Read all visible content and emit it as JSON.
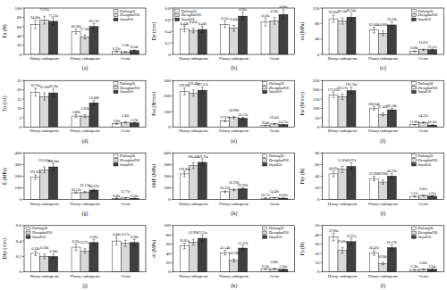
{
  "chart_data": [
    {
      "type": "bar",
      "title": "(a)",
      "y_label": "Ep (N)",
      "categories": [
        "Horny endosperm",
        "Floury endosperm",
        "Germ"
      ],
      "ylim": [
        0,
        100
      ],
      "yticks": [
        0,
        20,
        40,
        60,
        80,
        100
      ],
      "legend": "upper right",
      "data_labels": true,
      "series": [
        {
          "name": "Dailong30",
          "color": "#ffffff",
          "values": [
            64.68,
            49.36,
            6.35
          ],
          "errors": [
            9.2,
            5.1,
            1.1
          ],
          "value_labels": [
            "64.68a",
            "49.36b",
            "6.35c"
          ]
        },
        {
          "name": "Zhengdan958",
          "color": "#d9d9d9",
          "values": [
            73.95,
            37.58,
            5.58
          ],
          "errors": [
            8.4,
            4.3,
            0.9
          ],
          "value_labels": [
            "73.95a",
            "37.58c",
            "5.58c"
          ]
        },
        {
          "name": "Jinyu818",
          "color": "#404040",
          "values": [
            71.31,
            60.11,
            8.34
          ],
          "errors": [
            7.5,
            6.2,
            1.3
          ],
          "value_labels": [
            "71.31a",
            "60.11b",
            "8.34c"
          ]
        }
      ]
    },
    {
      "type": "bar",
      "title": "(b)",
      "y_label": "Dp (mm)",
      "categories": [
        "Horny endosperm",
        "Floury endosperm",
        "Germ"
      ],
      "ylim": [
        0,
        0.8
      ],
      "yticks": [
        0,
        0.2,
        0.4,
        0.6,
        0.8
      ],
      "legend": "upper left",
      "data_labels": true,
      "series": [
        {
          "name": "Dailong30",
          "color": "#ffffff",
          "values": [
            0.44,
            0.52,
            0.56
          ],
          "errors": [
            0.05,
            0.06,
            0.07
          ],
          "value_labels": [
            "0.44b",
            "0.52a",
            "0.56a"
          ]
        },
        {
          "name": "Zhengdan958",
          "color": "#d9d9d9",
          "values": [
            0.41,
            0.45,
            0.58
          ],
          "errors": [
            0.04,
            0.05,
            0.06
          ],
          "value_labels": [
            "0.41b",
            "0.45b",
            "0.58a"
          ]
        },
        {
          "name": "Jinyu818",
          "color": "#404040",
          "values": [
            0.43,
            0.66,
            0.69
          ],
          "errors": [
            0.05,
            0.07,
            0.08
          ],
          "value_labels": [
            "0.43b",
            "0.66a",
            "0.69a"
          ]
        }
      ]
    },
    {
      "type": "bar",
      "title": "(c)",
      "y_label": "σs (MPa)",
      "categories": [
        "Horny endosperm",
        "Floury endosperm",
        "Germ"
      ],
      "ylim": [
        0,
        120
      ],
      "yticks": [
        0,
        40,
        80,
        120
      ],
      "legend": "upper right",
      "data_labels": true,
      "series": [
        {
          "name": "Dailong30",
          "color": "#ffffff",
          "values": [
            92.05,
            62.84,
            8.08
          ],
          "errors": [
            9.5,
            7.2,
            1.2
          ],
          "value_labels": [
            "92.05a",
            "62.84b",
            "8.08c"
          ]
        },
        {
          "name": "Zhengdan958",
          "color": "#d9d9d9",
          "values": [
            86.54,
            54.86,
            12.07
          ],
          "errors": [
            8.1,
            6.0,
            1.8
          ],
          "value_labels": [
            "86.54a",
            "54.86b",
            "12.07c"
          ]
        },
        {
          "name": "Jinyu818",
          "color": "#404040",
          "values": [
            96.54,
            76.23,
            12.15
          ],
          "errors": [
            10.2,
            8.0,
            1.6
          ],
          "value_labels": [
            "96.54a",
            "76.23b",
            "12.15c"
          ]
        }
      ]
    },
    {
      "type": "bar",
      "title": "(d)",
      "y_label": "Tp (mJ)",
      "categories": [
        "Horny endosperm",
        "Floury endosperm",
        "Germ"
      ],
      "ylim": [
        0,
        25
      ],
      "yticks": [
        0,
        5,
        10,
        15,
        20,
        25
      ],
      "legend": "upper right",
      "data_labels": true,
      "series": [
        {
          "name": "Dailong30",
          "color": "#ffffff",
          "values": [
            18.7,
            5.86,
            1.66
          ],
          "errors": [
            2.1,
            0.8,
            0.3
          ],
          "value_labels": [
            "18.70a",
            "5.86b",
            "1.66c"
          ]
        },
        {
          "name": "Zhengdan958",
          "color": "#d9d9d9",
          "values": [
            16.39,
            5.85,
            2.46
          ],
          "errors": [
            1.9,
            0.7,
            0.4
          ],
          "value_labels": [
            "16.39a",
            "5.85b",
            "2.46c"
          ]
        },
        {
          "name": "Jinyu818",
          "color": "#404040",
          "values": [
            18.36,
            13.0,
            2.19
          ],
          "errors": [
            2.0,
            1.4,
            0.3
          ],
          "value_labels": [
            "18.36a",
            "13.00b",
            "2.19c"
          ]
        }
      ]
    },
    {
      "type": "bar",
      "title": "(e)",
      "y_label": "Fsd (N/mm)",
      "categories": [
        "Horny endosperm",
        "Floury endosperm",
        "Germ"
      ],
      "ylim": [
        0,
        300
      ],
      "yticks": [
        0,
        100,
        200,
        300
      ],
      "legend": "upper right",
      "data_labels": true,
      "series": [
        {
          "name": "Dailong30",
          "color": "#ffffff",
          "values": [
            229.6,
            37.87,
            9.04
          ],
          "errors": [
            22,
            6,
            1.5
          ],
          "value_labels": [
            "229.60a",
            "37.87b",
            "9.04c"
          ]
        },
        {
          "name": "Zhengdan958",
          "color": "#d9d9d9",
          "values": [
            219.4,
            60.99,
            19.45
          ],
          "errors": [
            20,
            7,
            2.5
          ],
          "value_labels": [
            "219.40a",
            "60.99b",
            "19.45c"
          ]
        },
        {
          "name": "Jinyu818",
          "color": "#404040",
          "values": [
            237.21,
            56.15,
            14.75
          ],
          "errors": [
            21,
            6.5,
            2.0
          ],
          "value_labels": [
            "237.21a",
            "56.15b",
            "14.75c"
          ]
        }
      ]
    },
    {
      "type": "bar",
      "title": "(f)",
      "y_label": "Far (N/mm)",
      "categories": [
        "Horny endosperm",
        "Floury endosperm",
        "Germ"
      ],
      "ylim": [
        0,
        250
      ],
      "yticks": [
        0,
        50,
        100,
        150,
        200,
        250
      ],
      "legend": "upper right",
      "data_labels": true,
      "series": [
        {
          "name": "Dailong30",
          "color": "#ffffff",
          "values": [
            172.65,
            100.64,
            11.86
          ],
          "errors": [
            16,
            10,
            1.5
          ],
          "value_labels": [
            "172.65a",
            "100.64b",
            "11.86c"
          ]
        },
        {
          "name": "Zhengdan958",
          "color": "#d9d9d9",
          "values": [
            162.27,
            67.42,
            24.23
          ],
          "errors": [
            15,
            8,
            2.8
          ],
          "value_labels": [
            "162.27a",
            "67.42b",
            "24.23c"
          ]
        },
        {
          "name": "Jinyu818",
          "color": "#404040",
          "values": [
            195.74,
            92.18,
            10.1
          ],
          "errors": [
            18,
            9,
            1.4
          ],
          "value_labels": [
            "195.74a",
            "92.18b",
            "10.10c"
          ]
        }
      ]
    },
    {
      "type": "bar",
      "title": "(g)",
      "y_label": "E (MPa)",
      "categories": [
        "Horny endosperm",
        "Floury endosperm",
        "Germ"
      ],
      "ylim": [
        0,
        400
      ],
      "yticks": [
        0,
        100,
        200,
        300,
        400
      ],
      "legend": "upper right",
      "data_labels": true,
      "series": [
        {
          "name": "Dailong30",
          "color": "#ffffff",
          "values": [
            191.62,
            58.11,
            9.4
          ],
          "errors": [
            20,
            7,
            1.2
          ],
          "value_labels": [
            "191.62a",
            "58.11b",
            "9.40c"
          ]
        },
        {
          "name": "Zhengdan958",
          "color": "#d9d9d9",
          "values": [
            255.05,
            62.17,
            12.71
          ],
          "errors": [
            25,
            7,
            1.6
          ],
          "value_labels": [
            "255.05a",
            "62.17b",
            "12.71c"
          ]
        },
        {
          "name": "Jinyu818",
          "color": "#404040",
          "values": [
            280.6,
            80.67,
            9.5
          ],
          "errors": [
            28,
            9,
            1.3
          ],
          "value_labels": [
            "280.60a",
            "80.67b",
            "9.50c"
          ]
        }
      ]
    },
    {
      "type": "bar",
      "title": "(h)",
      "y_label": "AME (MPa)",
      "categories": [
        "Horny endosperm",
        "Floury endosperm",
        "Germ"
      ],
      "ylim": [
        0,
        400
      ],
      "yticks": [
        0,
        100,
        200,
        300,
        400
      ],
      "legend": "upper right",
      "data_labels": true,
      "series": [
        {
          "name": "Dailong30",
          "color": "#ffffff",
          "values": [
            219.9,
            66.22,
            10.71
          ],
          "errors": [
            22,
            7,
            1.4
          ],
          "value_labels": [
            "219.90a",
            "66.22b",
            "10.71c"
          ]
        },
        {
          "name": "Zhengdan958",
          "color": "#d9d9d9",
          "values": [
            290.45,
            82.29,
            14.49
          ],
          "errors": [
            26,
            8,
            1.8
          ],
          "value_labels": [
            "290.45a",
            "82.29b",
            "14.49c"
          ]
        },
        {
          "name": "Jinyu818",
          "color": "#404040",
          "values": [
            319.76,
            91.93,
            10.82
          ],
          "errors": [
            30,
            9,
            1.4
          ],
          "value_labels": [
            "319.76a",
            "91.93b",
            "10.82c"
          ]
        }
      ]
    },
    {
      "type": "bar",
      "title": "(i)",
      "y_label": "Fby (N)",
      "categories": [
        "Horny endosperm",
        "Floury endosperm",
        "Germ"
      ],
      "ylim": [
        0,
        80
      ],
      "yticks": [
        0,
        20,
        40,
        60,
        80
      ],
      "legend": "upper right",
      "data_labels": true,
      "series": [
        {
          "name": "Dailong30",
          "color": "#ffffff",
          "values": [
            44.02,
            35.92,
            5.21
          ],
          "errors": [
            5,
            4,
            0.8
          ],
          "value_labels": [
            "44.02a",
            "35.92b",
            "5.21c"
          ]
        },
        {
          "name": "Zhengdan958",
          "color": "#d9d9d9",
          "values": [
            51.83,
            29.96,
            6.85
          ],
          "errors": [
            5.5,
            3.5,
            0.9
          ],
          "value_labels": [
            "51.83a",
            "29.96b",
            "6.85c"
          ]
        },
        {
          "name": "Jinyu818",
          "color": "#404040",
          "values": [
            56.97,
            40.25,
            5.65
          ],
          "errors": [
            6,
            4.5,
            0.8
          ],
          "value_labels": [
            "56.97a",
            "40.25b",
            "5.65c"
          ]
        }
      ]
    },
    {
      "type": "bar",
      "title": "(j)",
      "y_label": "Dby (mm)",
      "categories": [
        "Horny endosperm",
        "Floury endosperm",
        "Germ"
      ],
      "ylim": [
        0,
        0.6
      ],
      "yticks": [
        0,
        0.2,
        0.4,
        0.6
      ],
      "legend": "upper left",
      "data_labels": true,
      "series": [
        {
          "name": "Dailong30",
          "color": "#ffffff",
          "values": [
            0.24,
            0.32,
            0.4
          ],
          "errors": [
            0.03,
            0.04,
            0.05
          ],
          "value_labels": [
            "0.24b",
            "0.32a",
            "0.40a"
          ]
        },
        {
          "name": "Zhengdan958",
          "color": "#d9d9d9",
          "values": [
            0.2,
            0.27,
            0.37
          ],
          "errors": [
            0.03,
            0.03,
            0.04
          ],
          "value_labels": [
            "0.20b",
            "0.27a",
            "0.37a"
          ]
        },
        {
          "name": "Jinyu818",
          "color": "#404040",
          "values": [
            0.2,
            0.38,
            0.38
          ],
          "errors": [
            0.03,
            0.04,
            0.04
          ],
          "value_labels": [
            "0.20b",
            "0.38a",
            "0.38a"
          ]
        }
      ]
    },
    {
      "type": "bar",
      "title": "(k)",
      "y_label": "σt (MPa)",
      "categories": [
        "Horny endosperm",
        "Floury endosperm",
        "Germ"
      ],
      "ylim": [
        0,
        100
      ],
      "yticks": [
        0,
        20,
        40,
        60,
        80,
        100
      ],
      "legend": "upper right",
      "data_labels": true,
      "series": [
        {
          "name": "Dailong30",
          "color": "#ffffff",
          "values": [
            56.05,
            41.54,
            6.1
          ],
          "errors": [
            6,
            5,
            0.9
          ],
          "value_labels": [
            "56.05a",
            "41.54b",
            "6.10c"
          ]
        },
        {
          "name": "Zhengdan958",
          "color": "#d9d9d9",
          "values": [
            63.99,
            24.7,
            6.88
          ],
          "errors": [
            6.5,
            3,
            1.0
          ],
          "value_labels": [
            "63.99a",
            "24.70b",
            "6.88c"
          ]
        },
        {
          "name": "Jinyu818",
          "color": "#404040",
          "values": [
            72.55,
            51.37,
            5.5
          ],
          "errors": [
            7,
            5.5,
            0.8
          ],
          "value_labels": [
            "72.55a",
            "51.37b",
            "5.50c"
          ]
        }
      ]
    },
    {
      "type": "bar",
      "title": "(l)",
      "y_label": "Fp (N)",
      "categories": [
        "Horny endosperm",
        "Floury endosperm",
        "Germ"
      ],
      "ylim": [
        0,
        50
      ],
      "yticks": [
        0,
        10,
        20,
        30,
        40,
        50
      ],
      "legend": "upper right",
      "data_labels": true,
      "series": [
        {
          "name": "Dailong30",
          "color": "#ffffff",
          "values": [
            37.86,
            20.41,
            2.3
          ],
          "errors": [
            4,
            2.5,
            0.4
          ],
          "value_labels": [
            "37.86a",
            "20.41b",
            "2.30c"
          ]
        },
        {
          "name": "Zhengdan958",
          "color": "#d9d9d9",
          "values": [
            23.06,
            8.94,
            2.8
          ],
          "errors": [
            3,
            1.2,
            0.4
          ],
          "value_labels": [
            "23.06a",
            "8.94b",
            "2.80c"
          ]
        },
        {
          "name": "Jinyu818",
          "color": "#404040",
          "values": [
            32.67,
            26.17,
            2.84
          ],
          "errors": [
            3.5,
            3,
            0.4
          ],
          "value_labels": [
            "32.67a",
            "26.17b",
            "2.84c"
          ]
        }
      ]
    }
  ]
}
